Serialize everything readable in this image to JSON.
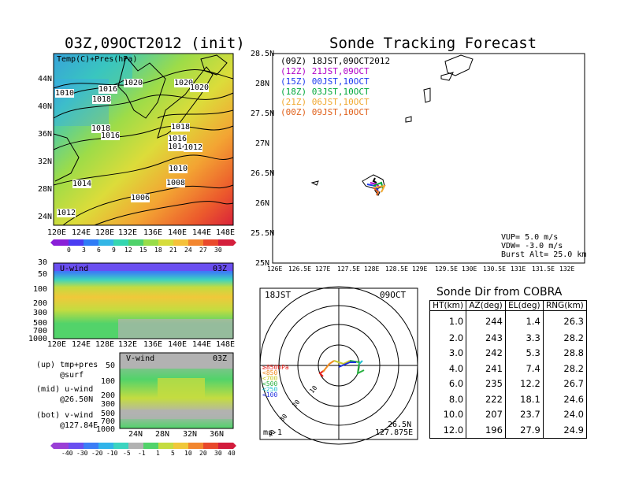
{
  "map_panel": {
    "title": "03Z,09OCT2012 (init)",
    "overlay_label": "Temp(C)+Pres(hPa)",
    "lat_labels": [
      "44N",
      "40N",
      "36N",
      "32N",
      "28N",
      "24N"
    ],
    "lon_labels": [
      "120E",
      "124E",
      "128E",
      "132E",
      "136E",
      "140E",
      "144E",
      "148E"
    ],
    "isobar_labels": [
      "1010",
      "1016",
      "1020",
      "1018",
      "1020",
      "1020",
      "1018",
      "1018",
      "1016",
      "1016",
      "1014",
      "1012",
      "1010",
      "1014",
      "1008",
      "1006",
      "1012"
    ],
    "colorbar_labels": [
      "0",
      "3",
      "6",
      "9",
      "12",
      "15",
      "18",
      "21",
      "24",
      "27",
      "30"
    ],
    "colorbar_colors": [
      "#8a1fd8",
      "#4a3cf2",
      "#2f7cf6",
      "#33b6e6",
      "#35d6b0",
      "#4fd26a",
      "#98dd48",
      "#d6dc3c",
      "#f5c13a",
      "#f3862f",
      "#ea4a2c",
      "#d41f3c"
    ]
  },
  "uwind_panel": {
    "label": "U-wind",
    "time": "03Z",
    "p_labels": [
      "30",
      "50",
      "100",
      "200",
      "300",
      "500",
      "700",
      "1000"
    ],
    "lon_labels": [
      "120E",
      "124E",
      "128E",
      "132E",
      "136E",
      "140E",
      "144E",
      "148E"
    ]
  },
  "vwind_panel": {
    "label": "V-wind",
    "time": "03Z",
    "p_labels": [
      "50",
      "100",
      "200",
      "300",
      "500",
      "700",
      "1000"
    ],
    "lat_labels": [
      "24N",
      "28N",
      "32N",
      "36N"
    ]
  },
  "left_notes": {
    "up_line1": "(up) tmp+pres",
    "up_line2": "@surf",
    "mid_line1": "(mid) u-wind",
    "mid_line2": "@26.50N",
    "bot_line1": "(bot) v-wind",
    "bot_line2": "@127.84E"
  },
  "wind_colorbar": {
    "labels": [
      "-40",
      "-30",
      "-20",
      "-10",
      "-5",
      "-1",
      "1",
      "5",
      "10",
      "20",
      "30",
      "40"
    ],
    "colors": [
      "#9a3fd6",
      "#6a4ff0",
      "#3c7df6",
      "#31b4ea",
      "#3cd4c0",
      "#b2b2b2",
      "#52d36a",
      "#c4dc40",
      "#f0c83a",
      "#f2862e",
      "#e8482b",
      "#d21c3c"
    ]
  },
  "tracking": {
    "title": "Sonde Tracking Forecast",
    "legend": [
      {
        "text": "(09Z) 18JST,09OCT2012",
        "color": "#000000"
      },
      {
        "text": "(12Z) 21JST,09OCT",
        "color": "#b000c8"
      },
      {
        "text": "(15Z) 00JST,10OCT",
        "color": "#1f3cf0"
      },
      {
        "text": "(18Z) 03JST,10OCT",
        "color": "#00a83a"
      },
      {
        "text": "(21Z) 06JST,10OCT",
        "color": "#f0a830"
      },
      {
        "text": "(00Z) 09JST,10OCT",
        "color": "#e0601a"
      }
    ],
    "lat_labels": [
      "28.5N",
      "28N",
      "27.5N",
      "27N",
      "26.5N",
      "26N",
      "25.5N",
      "25N"
    ],
    "lon_labels": [
      "126E",
      "126.5E",
      "127E",
      "127.5E",
      "128E",
      "128.5E",
      "129E",
      "129.5E",
      "130E",
      "130.5E",
      "131E",
      "131.5E",
      "132E"
    ],
    "params": [
      "VUP=  5.0 m/s",
      "VDW= -3.0 m/s",
      "Burst Alt= 25.0 km"
    ]
  },
  "hodograph": {
    "time": "18JST",
    "date": "09OCT",
    "ring_labels": [
      "10",
      "20",
      "30",
      "40"
    ],
    "level_labels": [
      {
        "text": "≥850hPa",
        "color": "#e8201c"
      },
      {
        "text": "<850",
        "color": "#f08a20"
      },
      {
        "text": "<700",
        "color": "#c8c82a"
      },
      {
        "text": "<500",
        "color": "#28b040"
      },
      {
        "text": "<250",
        "color": "#20c0d0"
      },
      {
        "text": "<100",
        "color": "#2030e0"
      }
    ],
    "units": "ms-1",
    "location_lat": "26.5N",
    "location_lon": "127.875E"
  },
  "cobra_table": {
    "title": "Sonde Dir from COBRA",
    "headers": [
      "HT(km)",
      "AZ(deg)",
      "EL(deg)",
      "RNG(km)"
    ],
    "rows": [
      [
        "1.0",
        "244",
        "1.4",
        "26.3"
      ],
      [
        "2.0",
        "243",
        "3.3",
        "28.2"
      ],
      [
        "3.0",
        "242",
        "5.3",
        "28.8"
      ],
      [
        "4.0",
        "241",
        "7.4",
        "28.2"
      ],
      [
        "6.0",
        "235",
        "12.2",
        "26.7"
      ],
      [
        "8.0",
        "222",
        "18.1",
        "24.6"
      ],
      [
        "10.0",
        "207",
        "23.7",
        "24.0"
      ],
      [
        "12.0",
        "196",
        "27.9",
        "24.9"
      ]
    ]
  }
}
